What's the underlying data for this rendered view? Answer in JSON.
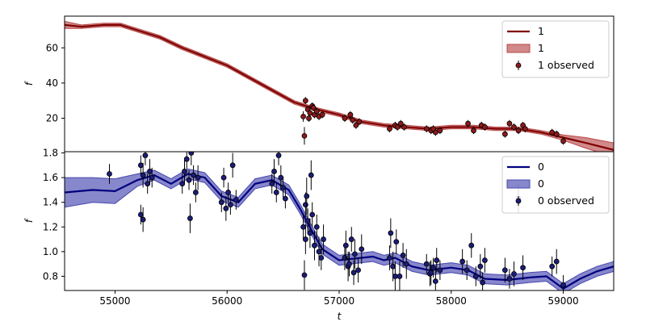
{
  "chart_data": [
    {
      "type": "line",
      "xlabel": "",
      "ylabel": "f",
      "xlim": [
        54550,
        59450
      ],
      "ylim": [
        1,
        78
      ],
      "yticks": [
        20,
        40,
        60
      ],
      "xticks": [],
      "legend_position": "top-right",
      "colors": {
        "line": "#800000",
        "band": "#b84a4a",
        "points": "#8b1a1a"
      },
      "legend": [
        {
          "kind": "line",
          "label": "1"
        },
        {
          "kind": "band",
          "label": "1"
        },
        {
          "kind": "points",
          "label": "1 observed"
        }
      ],
      "model_x": [
        54550,
        54700,
        54900,
        55050,
        55200,
        55400,
        55600,
        55800,
        56000,
        56200,
        56400,
        56600,
        56800,
        57000,
        57200,
        57400,
        57600,
        57800,
        58000,
        58200,
        58400,
        58600,
        58800,
        59000,
        59200,
        59450
      ],
      "model_y": [
        73,
        72,
        73,
        73,
        70,
        66,
        60,
        55,
        50,
        43,
        36,
        29,
        25,
        22,
        18,
        16,
        15,
        14,
        15,
        15,
        14,
        14,
        12,
        9,
        6,
        2
      ],
      "band_halfwidth": [
        2,
        1,
        1,
        1,
        1,
        1,
        1,
        1,
        1,
        1,
        1,
        1,
        1,
        1,
        1,
        1,
        1,
        1,
        1,
        1,
        1,
        1,
        1,
        1.5,
        3,
        4
      ],
      "observed_x": [
        56680,
        56700,
        56720,
        56740,
        56760,
        56780,
        56800,
        56820,
        56850,
        57050,
        57100,
        57150,
        57180,
        57450,
        57500,
        57550,
        57580,
        57780,
        57820,
        57860,
        57900,
        58150,
        58200,
        58270,
        58300,
        58480,
        58520,
        58600,
        58640,
        58660,
        58900,
        58940,
        59000,
        56690,
        56730,
        56770,
        57120,
        57520,
        57840,
        58560
      ],
      "observed_y": [
        21,
        30,
        25,
        23,
        27,
        22,
        24,
        21,
        22,
        20,
        22,
        16,
        18,
        14,
        16,
        17,
        15,
        14,
        13,
        12,
        13,
        17,
        13,
        16,
        15,
        11,
        17,
        13,
        16,
        14,
        12,
        11,
        7,
        10,
        20,
        26,
        19,
        15,
        14,
        15
      ],
      "observed_err": [
        3,
        2,
        2,
        3,
        2,
        2,
        2,
        2,
        2,
        2,
        2,
        2,
        2,
        2,
        2,
        2,
        2,
        2,
        2,
        2,
        2,
        2,
        2,
        2,
        2,
        2,
        2,
        2,
        2,
        2,
        2,
        2,
        2,
        5,
        2,
        2,
        2,
        2,
        2,
        2
      ]
    },
    {
      "type": "line",
      "xlabel": "t",
      "ylabel": "f",
      "xlim": [
        54550,
        59450
      ],
      "ylim": [
        0.685,
        1.81
      ],
      "yticks": [
        0.8,
        1.0,
        1.2,
        1.4,
        1.6,
        1.8
      ],
      "xticks": [
        55000,
        56000,
        57000,
        58000,
        59000
      ],
      "legend_position": "top-right",
      "colors": {
        "line": "#00007f",
        "band": "#4747b0",
        "points": "#1c1c78"
      },
      "legend": [
        {
          "kind": "line",
          "label": "0"
        },
        {
          "kind": "band",
          "label": "0"
        },
        {
          "kind": "points",
          "label": "0 observed"
        }
      ],
      "model_x": [
        54550,
        54800,
        55000,
        55200,
        55350,
        55500,
        55650,
        55800,
        55950,
        56100,
        56250,
        56400,
        56550,
        56650,
        56750,
        56850,
        57000,
        57200,
        57300,
        57400,
        57500,
        57650,
        57800,
        58000,
        58150,
        58300,
        58500,
        58700,
        58850,
        59000,
        59150,
        59300,
        59450
      ],
      "model_y": [
        1.48,
        1.5,
        1.49,
        1.58,
        1.62,
        1.55,
        1.63,
        1.6,
        1.45,
        1.4,
        1.55,
        1.58,
        1.5,
        1.35,
        1.18,
        1.02,
        0.93,
        0.95,
        0.96,
        0.93,
        0.95,
        0.88,
        0.85,
        0.87,
        0.85,
        0.78,
        0.77,
        0.79,
        0.8,
        0.7,
        0.78,
        0.84,
        0.88
      ],
      "band_halfwidth": [
        0.12,
        0.1,
        0.1,
        0.05,
        0.04,
        0.04,
        0.04,
        0.04,
        0.04,
        0.04,
        0.04,
        0.04,
        0.04,
        0.04,
        0.04,
        0.04,
        0.04,
        0.04,
        0.04,
        0.04,
        0.04,
        0.04,
        0.04,
        0.04,
        0.04,
        0.04,
        0.04,
        0.04,
        0.04,
        0.04,
        0.04,
        0.04,
        0.04
      ],
      "observed_x": [
        54950,
        55230,
        55250,
        55270,
        55290,
        55310,
        55330,
        55230,
        55250,
        55600,
        55620,
        55640,
        55660,
        55680,
        55700,
        55720,
        55740,
        55670,
        55950,
        55970,
        55990,
        56010,
        56030,
        56050,
        56080,
        56400,
        56420,
        56440,
        56460,
        56480,
        56500,
        56520,
        56680,
        56700,
        56720,
        56740,
        56760,
        56780,
        56800,
        56820,
        56840,
        56860,
        56700,
        56750,
        57050,
        57080,
        57110,
        57140,
        57170,
        57200,
        57450,
        57480,
        57510,
        57540,
        57570,
        57600,
        57780,
        57810,
        57840,
        57870,
        57900,
        58100,
        58140,
        58180,
        58220,
        58260,
        58280,
        58480,
        58520,
        58560,
        58600,
        58640,
        58900,
        58940,
        59000,
        56690,
        56710,
        57060,
        57090,
        57130,
        57460,
        57500,
        57820,
        57860,
        58300
      ],
      "observed_y": [
        1.63,
        1.7,
        1.62,
        1.78,
        1.55,
        1.65,
        1.6,
        1.3,
        1.26,
        1.55,
        1.65,
        1.75,
        1.58,
        1.8,
        1.62,
        1.48,
        1.6,
        1.27,
        1.4,
        1.6,
        1.35,
        1.48,
        1.38,
        1.7,
        1.42,
        1.55,
        1.65,
        1.48,
        1.78,
        1.6,
        1.52,
        1.43,
        1.2,
        1.1,
        1.25,
        1.15,
        1.3,
        1.05,
        1.2,
        1.0,
        0.95,
        1.1,
        1.38,
        1.62,
        0.95,
        0.88,
        1.1,
        0.98,
        0.85,
        1.02,
        0.95,
        0.88,
        1.08,
        0.8,
        0.97,
        0.9,
        0.9,
        0.82,
        0.87,
        0.93,
        0.85,
        0.92,
        0.85,
        1.05,
        0.8,
        0.88,
        0.75,
        0.85,
        0.78,
        0.82,
        1.43,
        0.87,
        0.88,
        0.92,
        0.73,
        0.81,
        1.45,
        1.05,
        0.9,
        0.83,
        1.15,
        0.8,
        0.83,
        0.76,
        0.93
      ],
      "observed_err": [
        0.08,
        0.08,
        0.1,
        0.08,
        0.08,
        0.1,
        0.08,
        0.08,
        0.1,
        0.08,
        0.1,
        0.08,
        0.08,
        0.1,
        0.08,
        0.08,
        0.1,
        0.12,
        0.08,
        0.08,
        0.1,
        0.08,
        0.08,
        0.1,
        0.08,
        0.08,
        0.1,
        0.08,
        0.08,
        0.1,
        0.08,
        0.08,
        0.1,
        0.12,
        0.1,
        0.12,
        0.1,
        0.12,
        0.1,
        0.12,
        0.1,
        0.12,
        0.1,
        0.12,
        0.1,
        0.12,
        0.1,
        0.12,
        0.1,
        0.12,
        0.1,
        0.12,
        0.1,
        0.12,
        0.1,
        0.12,
        0.08,
        0.1,
        0.08,
        0.1,
        0.08,
        0.1,
        0.08,
        0.1,
        0.08,
        0.1,
        0.08,
        0.1,
        0.08,
        0.1,
        0.12,
        0.1,
        0.08,
        0.1,
        0.08,
        0.12,
        0.15,
        0.12,
        0.1,
        0.1,
        0.12,
        0.12,
        0.1,
        0.1,
        0.1
      ]
    }
  ]
}
